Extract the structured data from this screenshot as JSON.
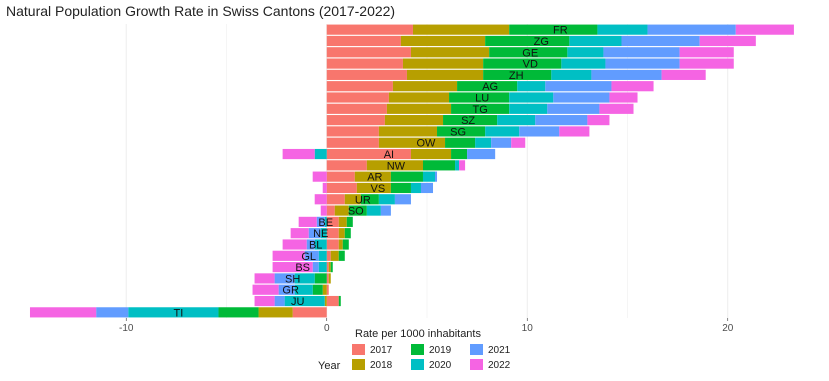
{
  "chart_data": {
    "type": "bar",
    "stacked": true,
    "orientation": "horizontal",
    "title": "Natural Population Growth Rate in Swiss Cantons (2017-2022)",
    "xlabel": "Rate per 1000 inhabitants",
    "ylabel": "",
    "xlim": [
      -14.5,
      24.8
    ],
    "xticks": [
      -10,
      0,
      10,
      20
    ],
    "grid": true,
    "legend_title": "Year",
    "legend_position": "bottom",
    "series": [
      {
        "name": "2017",
        "color": "#F8766D"
      },
      {
        "name": "2018",
        "color": "#B79F00"
      },
      {
        "name": "2019",
        "color": "#00BA38"
      },
      {
        "name": "2020",
        "color": "#00BFC4"
      },
      {
        "name": "2021",
        "color": "#619CFF"
      },
      {
        "name": "2022",
        "color": "#F564E3"
      }
    ],
    "categories": [
      "FR",
      "ZG",
      "GE",
      "VD",
      "ZH",
      "AG",
      "LU",
      "TG",
      "SZ",
      "SG",
      "OW",
      "AI",
      "NW",
      "AR",
      "VS",
      "UR",
      "SO",
      "BE",
      "NE",
      "BL",
      "GL",
      "BS",
      "SH",
      "GR",
      "JU",
      "TI"
    ],
    "values": {
      "FR": [
        4.3,
        4.8,
        4.4,
        2.5,
        4.4,
        2.9
      ],
      "ZG": [
        3.7,
        4.2,
        4.2,
        2.6,
        3.9,
        2.8
      ],
      "GE": [
        4.2,
        3.9,
        3.9,
        1.8,
        3.8,
        2.7
      ],
      "VD": [
        3.8,
        4.0,
        3.9,
        2.2,
        3.7,
        2.7
      ],
      "ZH": [
        4.0,
        3.8,
        3.4,
        2.0,
        3.5,
        2.2
      ],
      "AG": [
        3.3,
        3.2,
        3.0,
        1.4,
        3.3,
        2.1
      ],
      "LU": [
        3.1,
        3.0,
        3.0,
        2.2,
        2.8,
        1.4
      ],
      "TG": [
        3.0,
        3.2,
        2.9,
        1.9,
        2.6,
        1.7
      ],
      "SZ": [
        2.9,
        2.9,
        2.7,
        1.9,
        2.6,
        1.1
      ],
      "SG": [
        2.6,
        2.9,
        2.4,
        1.7,
        2.0,
        1.5
      ],
      "OW": [
        2.6,
        3.3,
        1.5,
        0.8,
        1.0,
        0.7
      ],
      "AI": [
        4.2,
        2.0,
        0.8,
        -0.6,
        1.4,
        -1.6
      ],
      "NW": [
        2.0,
        2.8,
        1.6,
        0.2,
        0.0,
        0.3
      ],
      "AR": [
        1.4,
        1.8,
        1.6,
        0.6,
        0.1,
        -0.7
      ],
      "VS": [
        1.5,
        1.7,
        1.0,
        0.5,
        0.6,
        -0.2
      ],
      "UR": [
        0.9,
        0.8,
        0.9,
        0.8,
        0.8,
        -0.6
      ],
      "SO": [
        0.4,
        0.7,
        0.9,
        0.7,
        0.5,
        -0.3
      ],
      "BE": [
        0.6,
        0.4,
        0.3,
        -0.1,
        -0.4,
        -0.9
      ],
      "NE": [
        0.6,
        0.3,
        0.3,
        -0.3,
        -0.6,
        -0.9
      ],
      "BL": [
        0.6,
        0.2,
        0.3,
        -0.6,
        -0.4,
        -1.2
      ],
      "GL": [
        0.2,
        0.4,
        0.3,
        -0.4,
        -0.7,
        -1.6
      ],
      "BS": [
        0.1,
        0.1,
        0.1,
        -0.4,
        -0.3,
        -2.0
      ],
      "SH": [
        0.1,
        0.1,
        -0.6,
        -1.0,
        -1.0,
        -1.0
      ],
      "GR": [
        0.1,
        -0.2,
        -0.5,
        -0.9,
        -0.8,
        -1.3
      ],
      "JU": [
        0.6,
        -0.1,
        0.1,
        -2.0,
        -0.5,
        -1.0
      ],
      "TI": [
        -1.7,
        -1.7,
        -2.0,
        -4.5,
        -1.6,
        -3.3
      ]
    }
  }
}
